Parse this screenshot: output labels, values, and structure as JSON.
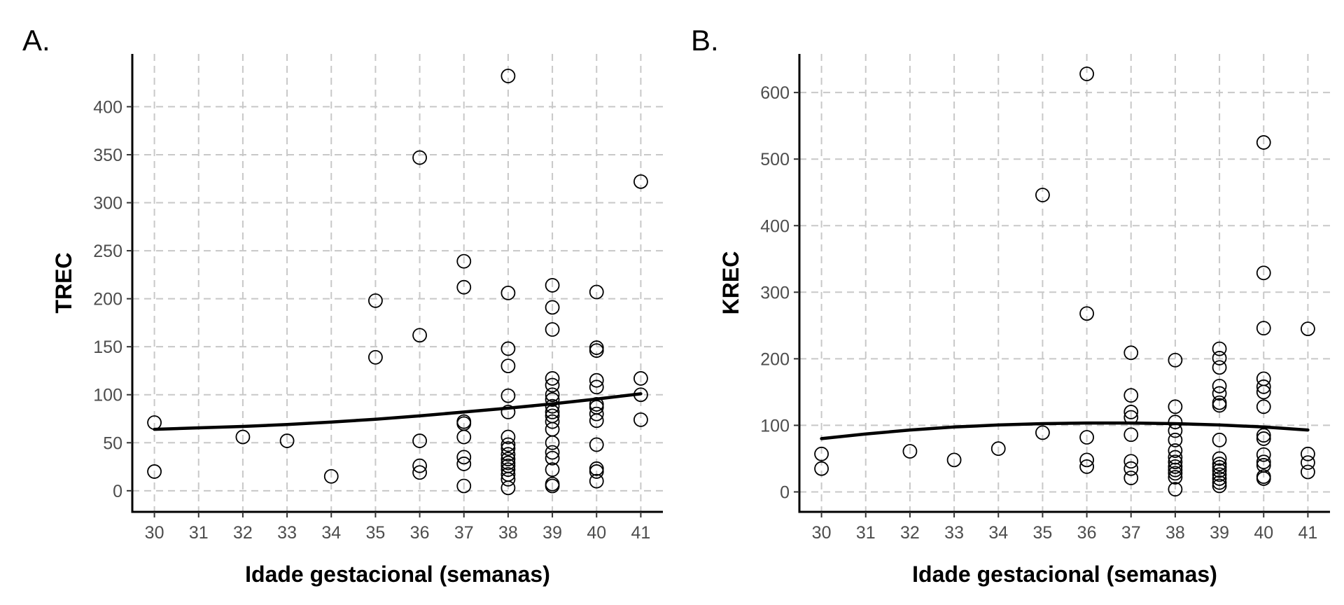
{
  "chart_data": [
    {
      "type": "scatter",
      "panel_label": "A.",
      "title": "",
      "xlabel": "Idade gestacional (semanas)",
      "ylabel": "TREC",
      "xlim": [
        29.5,
        41.5
      ],
      "ylim": [
        -22,
        455
      ],
      "x_ticks": [
        30,
        31,
        32,
        33,
        34,
        35,
        36,
        37,
        38,
        39,
        40,
        41
      ],
      "y_ticks": [
        0,
        50,
        100,
        150,
        200,
        250,
        300,
        350,
        400
      ],
      "grid": true,
      "legend": "none",
      "points": [
        [
          30,
          71
        ],
        [
          30,
          20
        ],
        [
          32,
          56
        ],
        [
          33,
          52
        ],
        [
          34,
          15
        ],
        [
          35,
          198
        ],
        [
          35,
          139
        ],
        [
          36,
          347
        ],
        [
          36,
          162
        ],
        [
          36,
          52
        ],
        [
          36,
          26
        ],
        [
          36,
          19
        ],
        [
          37,
          239
        ],
        [
          37,
          212
        ],
        [
          37,
          72
        ],
        [
          37,
          70
        ],
        [
          37,
          56
        ],
        [
          37,
          35
        ],
        [
          37,
          28
        ],
        [
          37,
          5
        ],
        [
          38,
          432
        ],
        [
          38,
          206
        ],
        [
          38,
          148
        ],
        [
          38,
          130
        ],
        [
          38,
          99
        ],
        [
          38,
          82
        ],
        [
          38,
          56
        ],
        [
          38,
          48
        ],
        [
          38,
          44
        ],
        [
          38,
          38
        ],
        [
          38,
          33
        ],
        [
          38,
          29
        ],
        [
          38,
          26
        ],
        [
          38,
          22
        ],
        [
          38,
          17
        ],
        [
          38,
          12
        ],
        [
          38,
          3
        ],
        [
          39,
          214
        ],
        [
          39,
          191
        ],
        [
          39,
          168
        ],
        [
          39,
          117
        ],
        [
          39,
          110
        ],
        [
          39,
          100
        ],
        [
          39,
          95
        ],
        [
          39,
          88
        ],
        [
          39,
          82
        ],
        [
          39,
          78
        ],
        [
          39,
          72
        ],
        [
          39,
          64
        ],
        [
          39,
          50
        ],
        [
          39,
          40
        ],
        [
          39,
          34
        ],
        [
          39,
          22
        ],
        [
          39,
          7
        ],
        [
          39,
          5
        ],
        [
          40,
          207
        ],
        [
          40,
          149
        ],
        [
          40,
          146
        ],
        [
          40,
          115
        ],
        [
          40,
          108
        ],
        [
          40,
          90
        ],
        [
          40,
          87
        ],
        [
          40,
          80
        ],
        [
          40,
          73
        ],
        [
          40,
          48
        ],
        [
          40,
          23
        ],
        [
          40,
          20
        ],
        [
          40,
          10
        ],
        [
          41,
          322
        ],
        [
          41,
          117
        ],
        [
          41,
          100
        ],
        [
          41,
          74
        ]
      ],
      "trend_line": {
        "x": [
          30,
          31,
          32,
          33,
          34,
          35,
          36,
          37,
          38,
          39,
          40,
          41
        ],
        "y": [
          64,
          65.5,
          67,
          69,
          71.5,
          74.5,
          78,
          82,
          86,
          90.5,
          95.5,
          101
        ]
      }
    },
    {
      "type": "scatter",
      "panel_label": "B.",
      "title": "",
      "xlabel": "Idade gestacional (semanas)",
      "ylabel": "KREC",
      "xlim": [
        29.5,
        41.5
      ],
      "ylim": [
        -30,
        658
      ],
      "x_ticks": [
        30,
        31,
        32,
        33,
        34,
        35,
        36,
        37,
        38,
        39,
        40,
        41
      ],
      "y_ticks": [
        0,
        100,
        200,
        300,
        400,
        500,
        600
      ],
      "grid": true,
      "legend": "none",
      "points": [
        [
          30,
          57
        ],
        [
          30,
          35
        ],
        [
          32,
          61
        ],
        [
          33,
          48
        ],
        [
          34,
          65
        ],
        [
          35,
          446
        ],
        [
          35,
          89
        ],
        [
          36,
          628
        ],
        [
          36,
          268
        ],
        [
          36,
          82
        ],
        [
          36,
          48
        ],
        [
          36,
          38
        ],
        [
          37,
          209
        ],
        [
          37,
          145
        ],
        [
          37,
          120
        ],
        [
          37,
          112
        ],
        [
          37,
          86
        ],
        [
          37,
          46
        ],
        [
          37,
          35
        ],
        [
          37,
          21
        ],
        [
          38,
          198
        ],
        [
          38,
          128
        ],
        [
          38,
          105
        ],
        [
          38,
          92
        ],
        [
          38,
          78
        ],
        [
          38,
          62
        ],
        [
          38,
          52
        ],
        [
          38,
          45
        ],
        [
          38,
          38
        ],
        [
          38,
          33
        ],
        [
          38,
          28
        ],
        [
          38,
          22
        ],
        [
          38,
          4
        ],
        [
          39,
          215
        ],
        [
          39,
          201
        ],
        [
          39,
          187
        ],
        [
          39,
          159
        ],
        [
          39,
          148
        ],
        [
          39,
          134
        ],
        [
          39,
          130
        ],
        [
          39,
          78
        ],
        [
          39,
          50
        ],
        [
          39,
          42
        ],
        [
          39,
          37
        ],
        [
          39,
          32
        ],
        [
          39,
          26
        ],
        [
          39,
          20
        ],
        [
          39,
          14
        ],
        [
          39,
          9
        ],
        [
          40,
          525
        ],
        [
          40,
          329
        ],
        [
          40,
          246
        ],
        [
          40,
          170
        ],
        [
          40,
          158
        ],
        [
          40,
          150
        ],
        [
          40,
          128
        ],
        [
          40,
          85
        ],
        [
          40,
          80
        ],
        [
          40,
          56
        ],
        [
          40,
          45
        ],
        [
          40,
          40
        ],
        [
          40,
          23
        ],
        [
          40,
          20
        ],
        [
          41,
          245
        ],
        [
          41,
          57
        ],
        [
          41,
          44
        ],
        [
          41,
          30
        ]
      ],
      "trend_line": {
        "x": [
          30,
          31,
          32,
          33,
          34,
          35,
          36,
          37,
          38,
          39,
          40,
          41
        ],
        "y": [
          80,
          87,
          93,
          97.5,
          100.5,
          102.5,
          103.5,
          103.5,
          102.5,
          100.5,
          97.5,
          93
        ]
      }
    }
  ]
}
